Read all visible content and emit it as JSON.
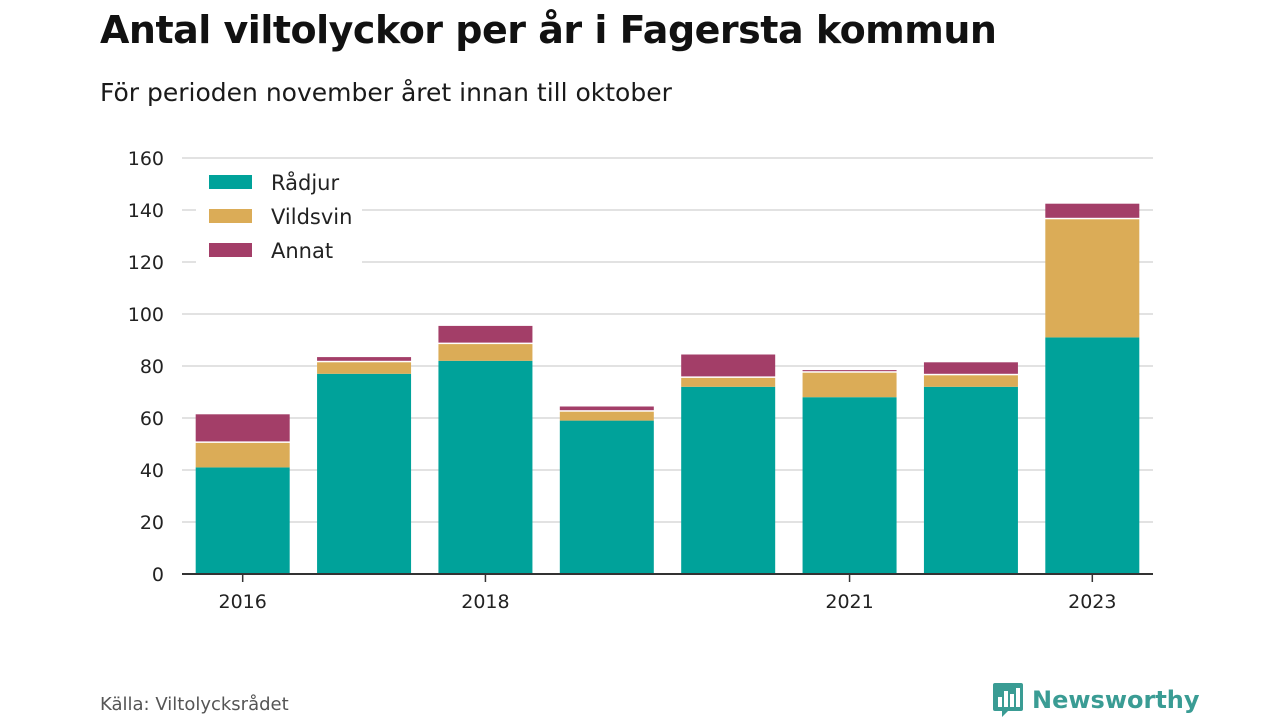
{
  "title": "Antal viltolyckor per år i Fagersta kommun",
  "subtitle": "För perioden november året innan till oktober",
  "source": "Källa: Viltolycksrådet",
  "brand": {
    "name": "Newsworthy",
    "icon": "bar-chart-speech-icon",
    "color": "#3a9c94"
  },
  "chart_data": {
    "type": "bar",
    "stacked": true,
    "categories": [
      "2016",
      "2017",
      "2018",
      "2019",
      "2020",
      "2021",
      "2022",
      "2023"
    ],
    "x_tick_labels": [
      "2016",
      "",
      "2018",
      "",
      "",
      "2021",
      "",
      "2023"
    ],
    "series": [
      {
        "name": "Rådjur",
        "color": "#00a29a",
        "values": [
          41,
          77,
          82,
          59,
          72,
          68,
          72,
          91
        ]
      },
      {
        "name": "Vildsvin",
        "color": "#dbac57",
        "values": [
          10,
          5,
          7,
          4,
          4,
          10,
          5,
          46
        ]
      },
      {
        "name": "Annat",
        "color": "#a33e68",
        "values": [
          11,
          2,
          7,
          2,
          9,
          1,
          5,
          6
        ]
      }
    ],
    "ylim": [
      0,
      160
    ],
    "yticks": [
      0,
      20,
      40,
      60,
      80,
      100,
      120,
      140,
      160
    ],
    "grid": true,
    "legend_position": "top-left",
    "xlabel": "",
    "ylabel": ""
  }
}
